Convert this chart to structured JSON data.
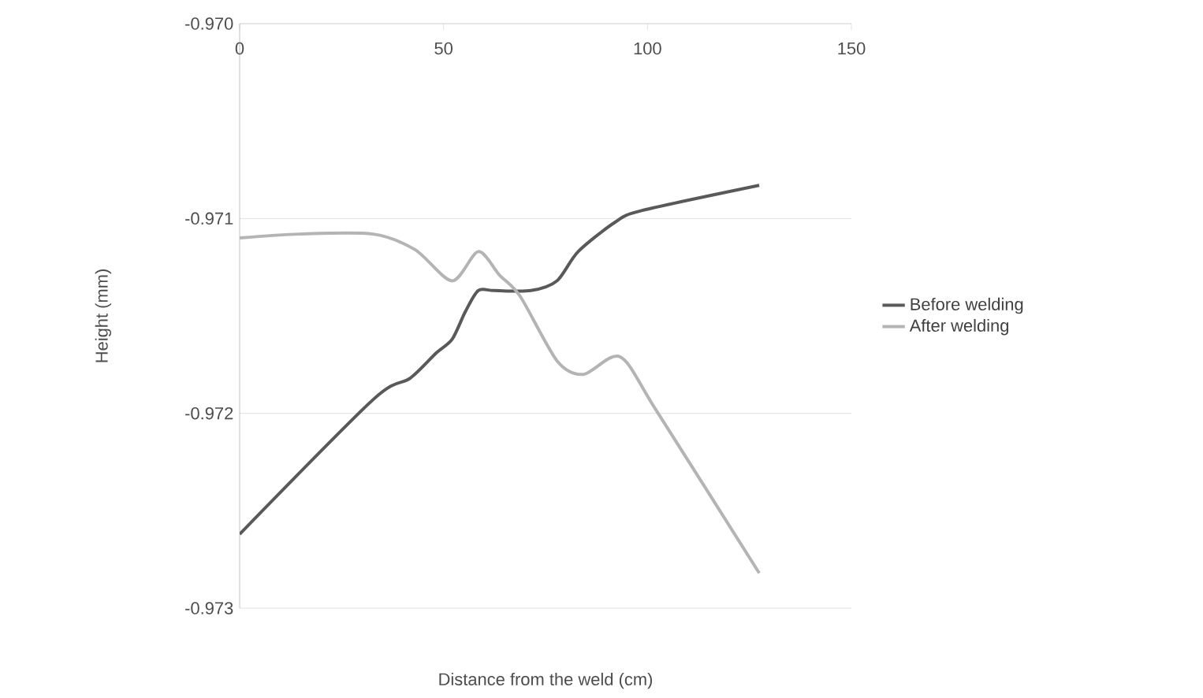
{
  "chart_data": {
    "type": "line",
    "xlabel": "Distance from the weld (cm)",
    "ylabel": "Height (mm)",
    "xlim": [
      0,
      150
    ],
    "xticks": [
      0,
      50,
      100,
      150
    ],
    "ylim": [
      -0.973,
      -0.97
    ],
    "yticks": [
      {
        "value": -0.97,
        "label": "-0.970"
      },
      -0.971,
      -0.972,
      -0.973
    ],
    "grid": "y",
    "legend": "right",
    "series": [
      {
        "name": "Before welding",
        "color": "#595959",
        "x": [
          0,
          32.7,
          41.8,
          48.2,
          52.1,
          55.3,
          58.5,
          62.4,
          71.4,
          77.8,
          83,
          92,
          98.5,
          127.4
        ],
        "values": [
          -0.97262,
          -0.97193,
          -0.97182,
          -0.97169,
          -0.97162,
          -0.97148,
          -0.97137,
          -0.97137,
          -0.97137,
          -0.97132,
          -0.97117,
          -0.97102,
          -0.97096,
          -0.97083
        ]
      },
      {
        "name": "After welding",
        "color": "#b4b4b4",
        "x": [
          0,
          14.7,
          32.7,
          43,
          52.1,
          58.5,
          63.7,
          68.8,
          77.8,
          84.3,
          93.3,
          102.3,
          127.4
        ],
        "values": [
          -0.9711,
          -0.97108,
          -0.97108,
          -0.97116,
          -0.97132,
          -0.97117,
          -0.97129,
          -0.9714,
          -0.97173,
          -0.9718,
          -0.97171,
          -0.97199,
          -0.97282
        ]
      }
    ]
  }
}
